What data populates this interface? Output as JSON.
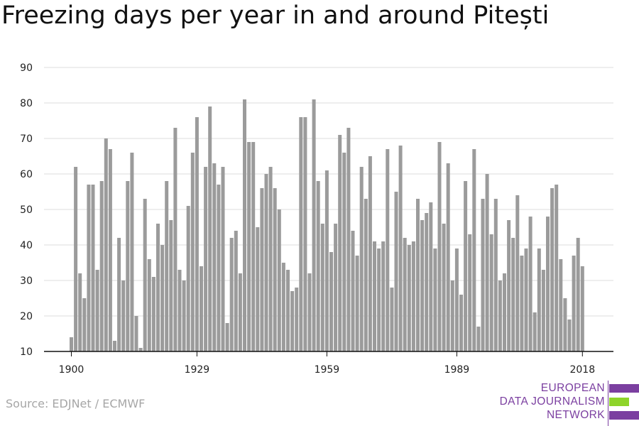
{
  "title": "Freezing days per year in and around Pitești",
  "source": "Source: EDJNet / ECMWF",
  "logo": {
    "lines": [
      "EUROPEAN",
      "DATA JOURNALISM",
      "NETWORK"
    ],
    "colors": {
      "purple": "#7b3fa0",
      "green": "#8ed42a"
    }
  },
  "colors": {
    "bar": "#9b9b9b",
    "grid": "#dcdcdc",
    "axis": "#111111"
  },
  "chart_data": {
    "type": "bar",
    "x": [
      1900,
      1901,
      1902,
      1903,
      1904,
      1905,
      1906,
      1907,
      1908,
      1909,
      1910,
      1911,
      1912,
      1913,
      1914,
      1915,
      1916,
      1917,
      1918,
      1919,
      1920,
      1921,
      1922,
      1923,
      1924,
      1925,
      1926,
      1927,
      1928,
      1929,
      1930,
      1931,
      1932,
      1933,
      1934,
      1935,
      1936,
      1937,
      1938,
      1939,
      1940,
      1941,
      1942,
      1943,
      1944,
      1945,
      1946,
      1947,
      1948,
      1949,
      1950,
      1951,
      1952,
      1953,
      1954,
      1955,
      1956,
      1957,
      1958,
      1959,
      1960,
      1961,
      1962,
      1963,
      1964,
      1965,
      1966,
      1967,
      1968,
      1969,
      1970,
      1971,
      1972,
      1973,
      1974,
      1975,
      1976,
      1977,
      1978,
      1979,
      1980,
      1981,
      1982,
      1983,
      1984,
      1985,
      1986,
      1987,
      1988,
      1989,
      1990,
      1991,
      1992,
      1993,
      1994,
      1995,
      1996,
      1997,
      1998,
      1999,
      2000,
      2001,
      2002,
      2003,
      2004,
      2005,
      2006,
      2007,
      2008,
      2009,
      2010,
      2011,
      2012,
      2013,
      2014,
      2015,
      2016,
      2017,
      2018
    ],
    "values": [
      14,
      62,
      32,
      25,
      57,
      57,
      33,
      58,
      70,
      67,
      13,
      42,
      30,
      58,
      66,
      20,
      11,
      53,
      36,
      31,
      46,
      40,
      58,
      47,
      73,
      33,
      30,
      51,
      66,
      76,
      34,
      62,
      79,
      63,
      57,
      62,
      18,
      42,
      44,
      32,
      81,
      69,
      69,
      45,
      56,
      60,
      62,
      56,
      50,
      35,
      33,
      27,
      28,
      76,
      76,
      32,
      81,
      58,
      46,
      61,
      38,
      46,
      71,
      66,
      73,
      44,
      37,
      62,
      53,
      65,
      41,
      39,
      41,
      67,
      28,
      55,
      68,
      42,
      40,
      41,
      53,
      47,
      49,
      52,
      39,
      69,
      46,
      63,
      30,
      39,
      26,
      58,
      43,
      67,
      17,
      53,
      60,
      43,
      53,
      30,
      32,
      47,
      42,
      54,
      37,
      39,
      48,
      21,
      39,
      33,
      48,
      56,
      57,
      36,
      25,
      19,
      37,
      42,
      34
    ],
    "xticks": [
      "1900",
      "1929",
      "1959",
      "1989",
      "2018"
    ],
    "xtick_values": [
      1900,
      1929,
      1959,
      1989,
      2018
    ],
    "yticks": [
      "10",
      "20",
      "30",
      "40",
      "50",
      "60",
      "70",
      "80",
      "90"
    ],
    "ylim": [
      10,
      90
    ],
    "xlabel": "",
    "ylabel": "",
    "grid": true
  }
}
